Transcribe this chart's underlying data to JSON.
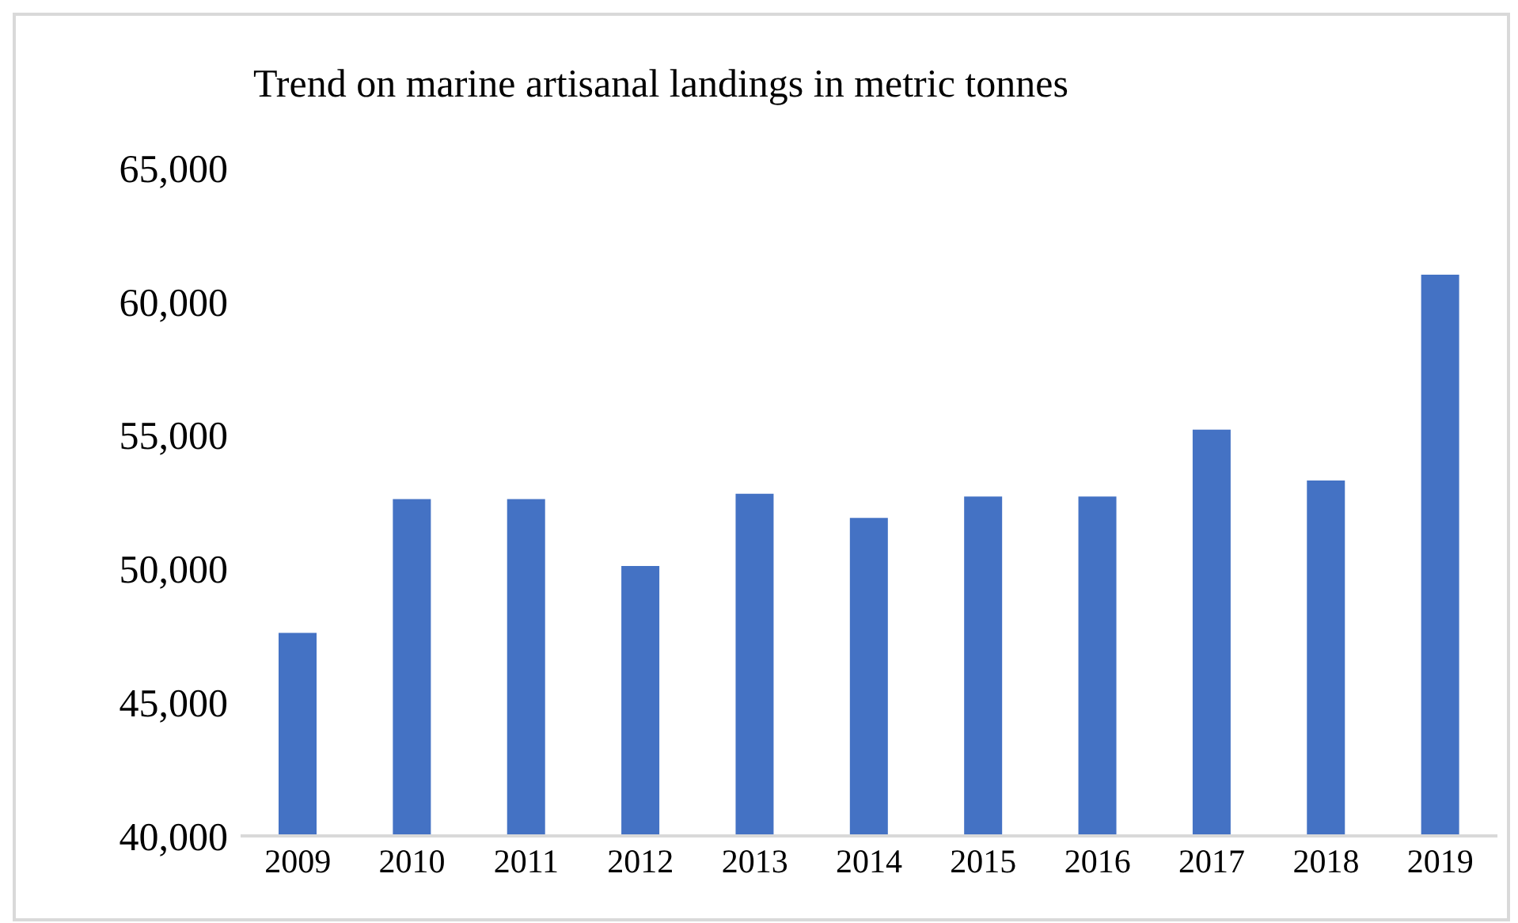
{
  "chart_data": {
    "type": "bar",
    "title": "Trend on marine artisanal landings in metric tonnes",
    "categories": [
      "2009",
      "2010",
      "2011",
      "2012",
      "2013",
      "2014",
      "2015",
      "2016",
      "2017",
      "2018",
      "2019"
    ],
    "series": [
      {
        "color": "#4472c4",
        "values": [
          47600,
          52600,
          52600,
          50100,
          52800,
          51900,
          52700,
          52700,
          55200,
          53300,
          61000
        ]
      }
    ],
    "ylim": [
      40000,
      65000
    ],
    "yticks": [
      {
        "value": 40000,
        "label": "40,000"
      },
      {
        "value": 45000,
        "label": "45,000"
      },
      {
        "value": 50000,
        "label": "50,000"
      },
      {
        "value": 55000,
        "label": "55,000"
      },
      {
        "value": 60000,
        "label": "60,000"
      },
      {
        "value": 65000,
        "label": "65,000"
      }
    ],
    "grid": false,
    "legend": false
  }
}
